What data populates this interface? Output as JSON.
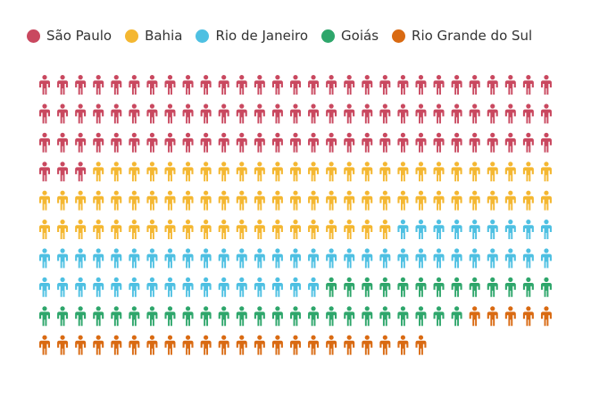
{
  "chart_data": {
    "type": "pictogram",
    "icon": "person-icon",
    "grid": {
      "rows": 10,
      "columns": 29
    },
    "series": [
      {
        "name": "São Paulo",
        "value": 90,
        "color": "#c9485f"
      },
      {
        "name": "Bahia",
        "value": 75,
        "color": "#f4b731"
      },
      {
        "name": "Rio de Janeiro",
        "value": 54,
        "color": "#4ec0e2"
      },
      {
        "name": "Goiás",
        "value": 37,
        "color": "#2ea66b"
      },
      {
        "name": "Rio Grande do Sul",
        "value": 27,
        "color": "#d96a12"
      }
    ],
    "legend_position": "top"
  }
}
